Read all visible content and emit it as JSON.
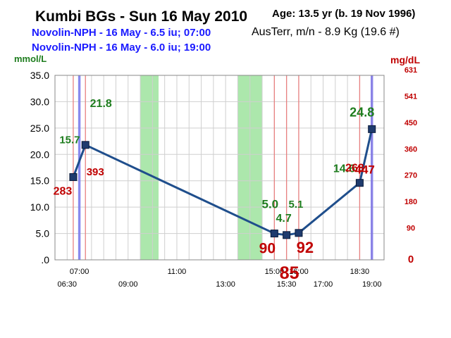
{
  "header": {
    "title": "Kumbi BGs - Sun 16 May 2010",
    "age": "Age: 13.5  yr (b. 19 Nov 1996)",
    "weight": "AusTerr, m/n - 8.9 Kg (19.6 #)",
    "dose_1": "Novolin-NPH - 16 May - 6.5 iu; 07:00",
    "dose_2": "Novolin-NPH - 16 May - 6.0 iu; 19:00"
  },
  "chart_data": {
    "type": "line",
    "left_unit": "mmol/L",
    "right_unit": "mg/dL",
    "ylim": [
      0,
      35
    ],
    "xlim": [
      "06:00",
      "19:30"
    ],
    "y_ticks": [
      ".0",
      "5.0",
      "10.0",
      "15.0",
      "20.0",
      "25.0",
      "30.0",
      "35.0"
    ],
    "y_ticks_right": [
      "0",
      "90",
      "180",
      "270",
      "360",
      "450",
      "541",
      "631"
    ],
    "x_ticks_upper": [
      "07:00",
      "11:00",
      "15:00",
      "16:00",
      "18:30"
    ],
    "x_ticks_lower": [
      "06:30",
      "09:00",
      "13:00",
      "15:30",
      "17:00",
      "19:00"
    ],
    "grid": true,
    "series": [
      {
        "x": [
          "06:45",
          "07:15",
          "15:00",
          "15:30",
          "16:00",
          "18:30",
          "19:00"
        ],
        "y": [
          15.7,
          21.8,
          5.0,
          4.7,
          5.1,
          14.6,
          24.8
        ],
        "labels_mmol": [
          "15.7",
          "21.8",
          "5.0",
          "4.7",
          "5.1",
          "14.6",
          "24.8"
        ],
        "labels_mgdl": [
          "283",
          "393",
          "90",
          "85",
          "92",
          "263",
          "447"
        ]
      }
    ],
    "insulin_lines": [
      "07:00",
      "19:00"
    ],
    "meal_bands": [
      [
        "09:30",
        "10:15"
      ],
      [
        "13:30",
        "14:30"
      ]
    ],
    "colors": {
      "line": "#1f4e8c",
      "marker": "#1f3b6e",
      "mmol_label": "#1e7d1e",
      "mgdl_label": "#c00000",
      "insulin": "#7a7aee",
      "band": "#9de39d",
      "red_line": "#e88080"
    }
  }
}
